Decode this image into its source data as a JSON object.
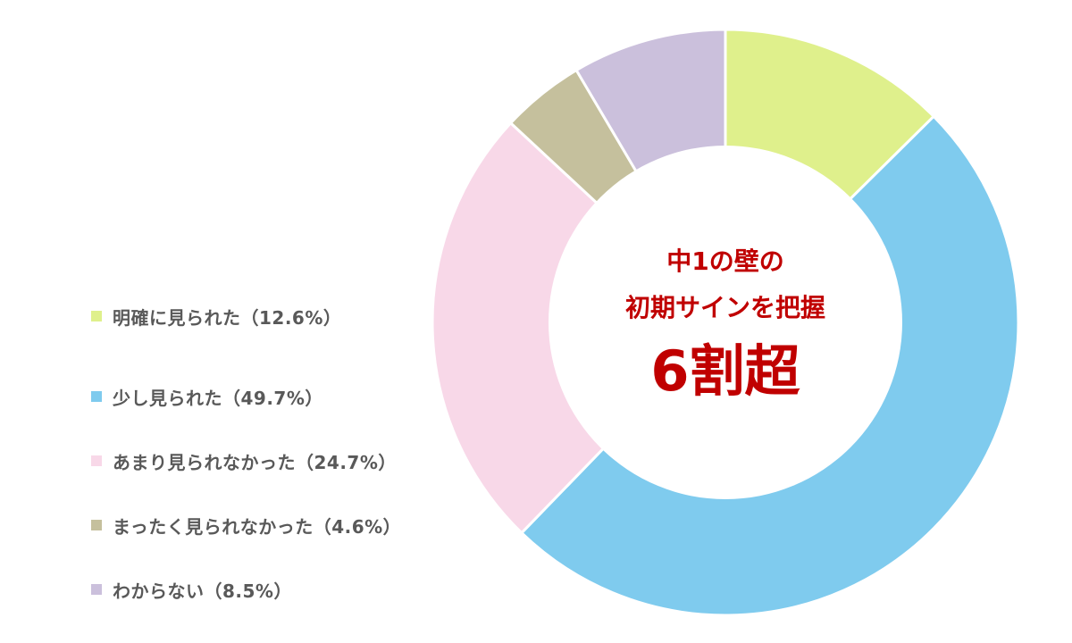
{
  "chart_data": {
    "type": "pie",
    "categories": [
      "明確に見られた",
      "少し見られた",
      "あまり見られなかった",
      "まったく見られなかった",
      "わからない"
    ],
    "values": [
      12.6,
      49.7,
      24.7,
      4.6,
      8.5
    ],
    "colors": [
      "#dff08c",
      "#7fcbee",
      "#f8d8e8",
      "#c5c09d",
      "#cbc0dc"
    ],
    "legend": {
      "placement": "left",
      "labels": [
        "明確に見られた（12.6%）",
        "少し見られた（49.7%）",
        "あまり見られなかった（24.7%）",
        "まったく見られなかった（4.6%）",
        "わからない（8.5%）"
      ]
    },
    "center_labels": [
      "中1の壁の",
      "初期サインを把握",
      "6割超"
    ]
  }
}
